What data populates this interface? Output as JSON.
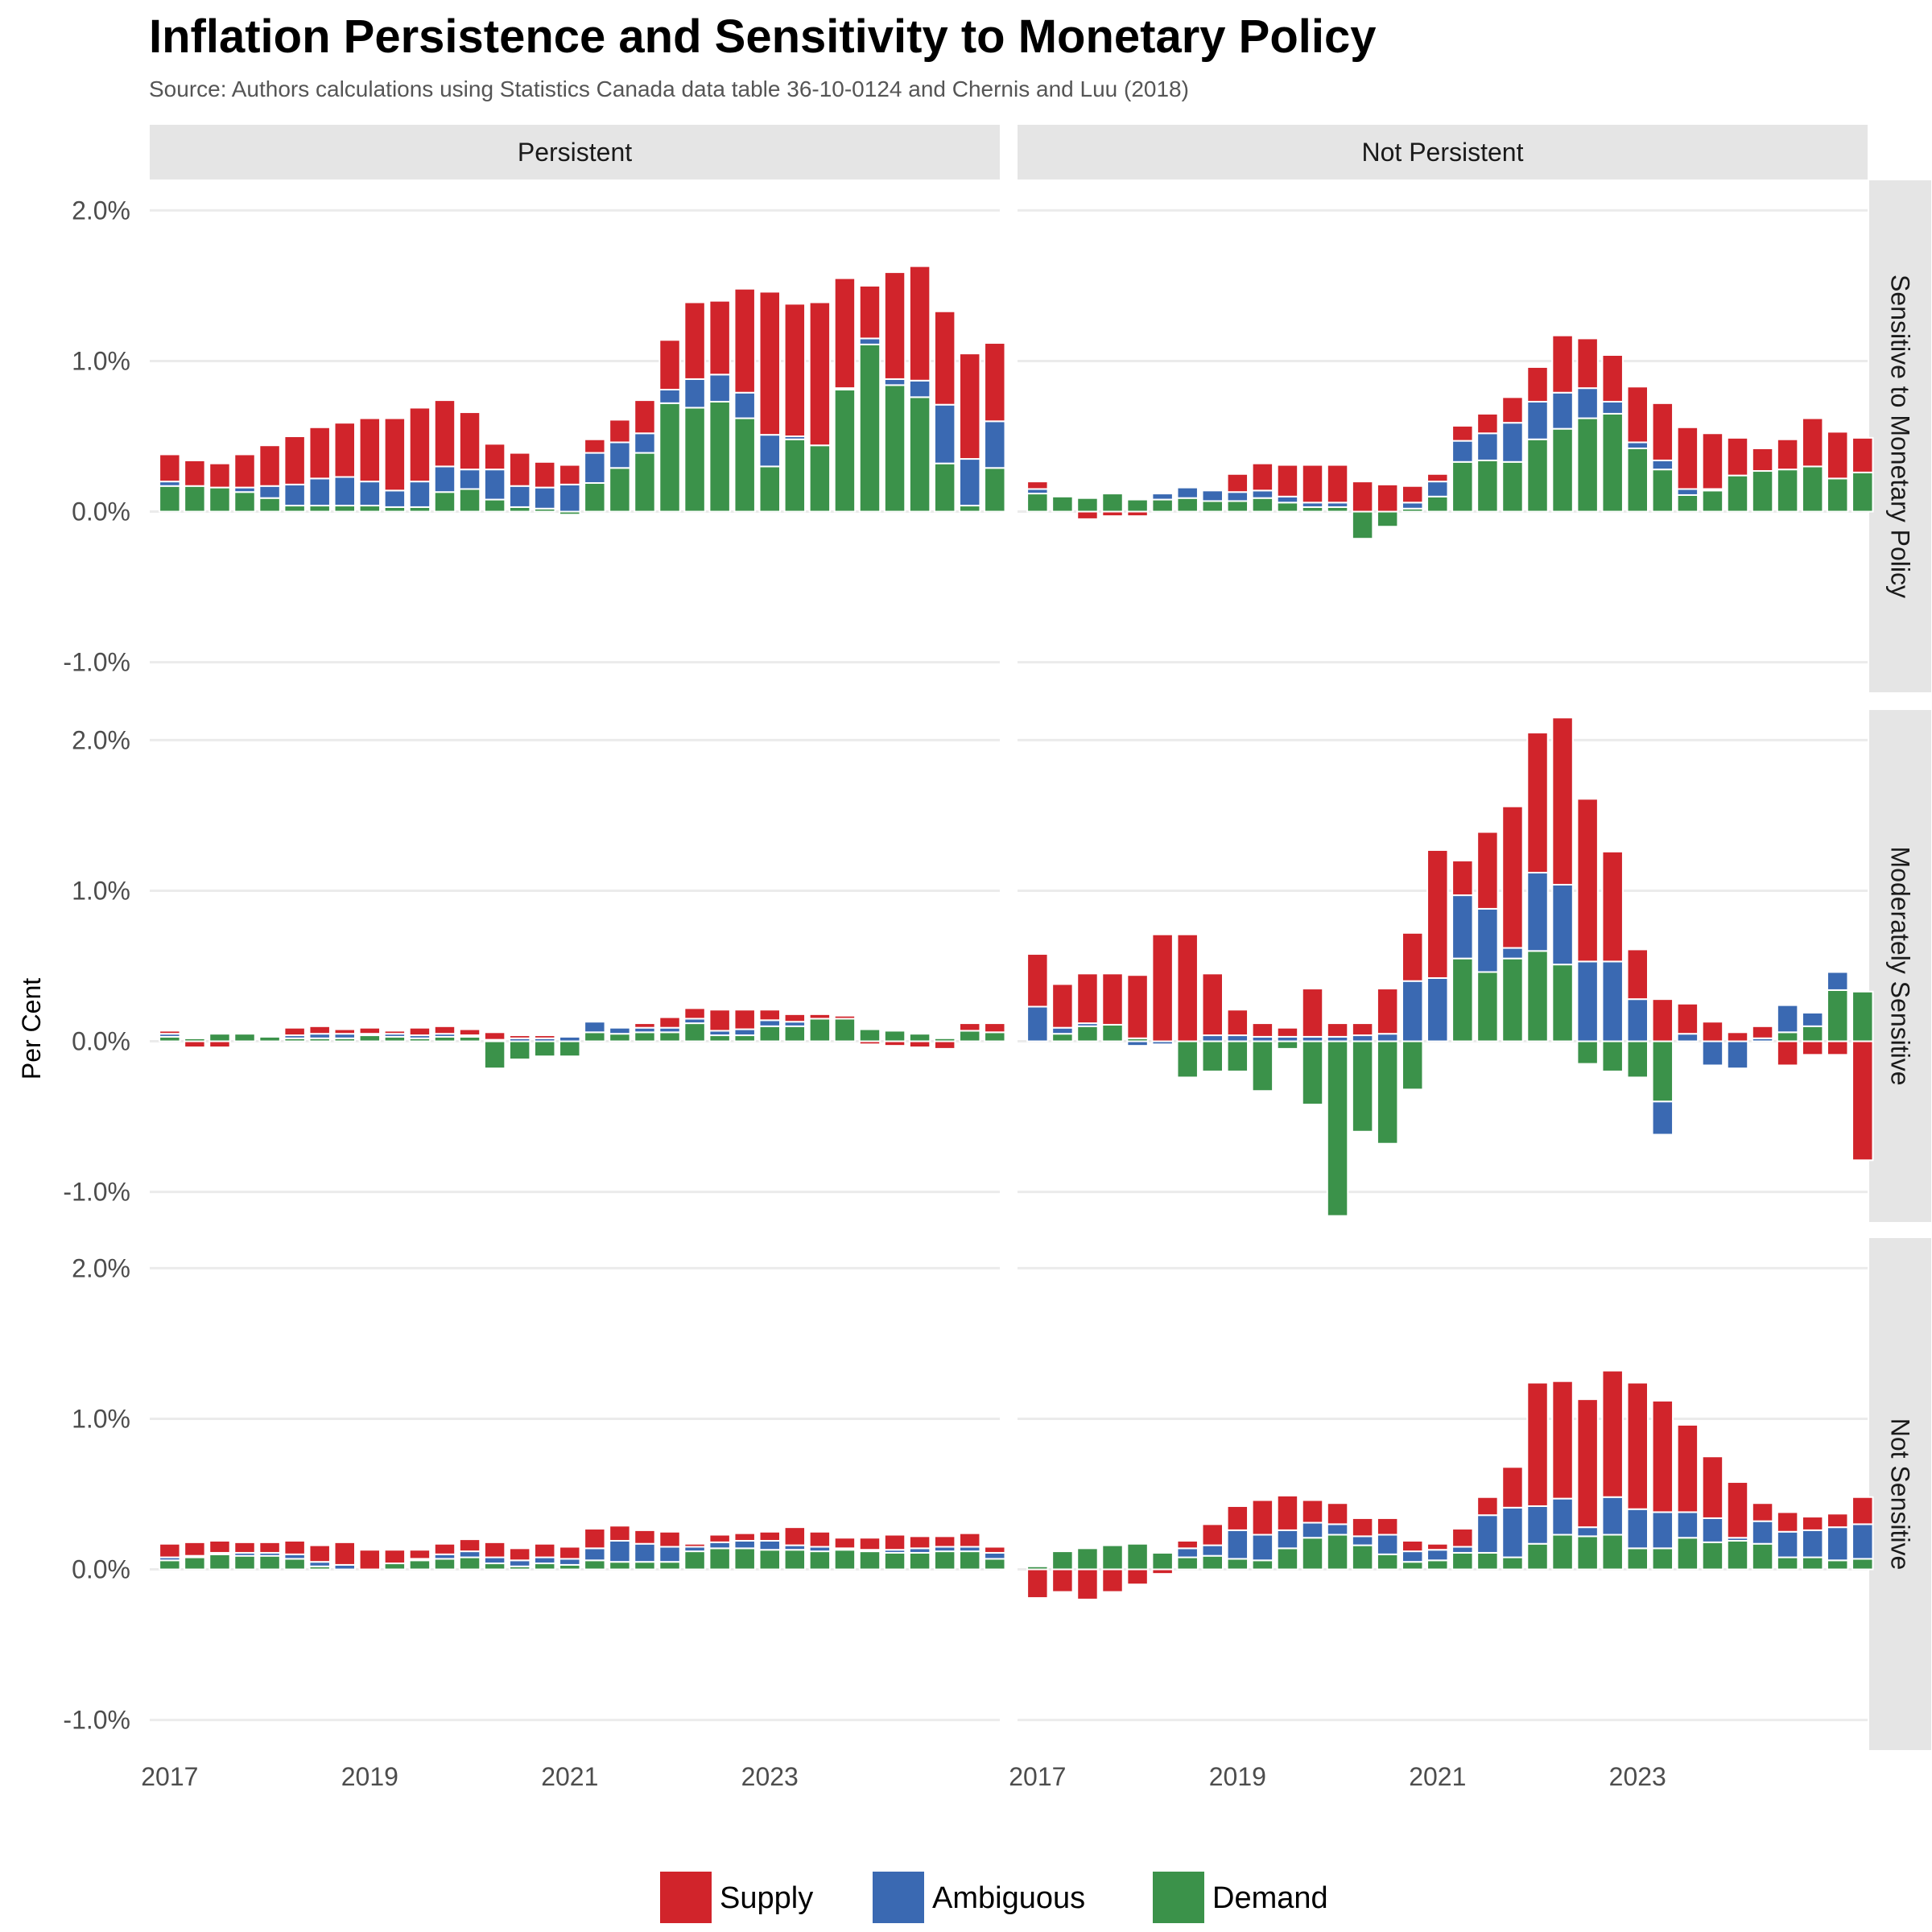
{
  "chart_data": {
    "type": "bar",
    "stacked": true,
    "title": "Inflation Persistence and Sensitivity to Monetary Policy",
    "subtitle": "Source: Authors calculations using Statistics Canada data table 36-10-0124 and Chernis and Luu (2018)",
    "ylabel": "Per Cent",
    "xlabel": "",
    "ylim": [
      -1.2,
      2.2
    ],
    "y_ticks": [
      2.0,
      1.0,
      0.0,
      -1.0
    ],
    "y_tick_labels": [
      "2.0%",
      "1.0%",
      "0.0%",
      "-1.0%"
    ],
    "x_ticks": [
      2017,
      2019,
      2021,
      2023
    ],
    "x_tick_labels": [
      "2017",
      "2019",
      "2021",
      "2023"
    ],
    "x_start": 2017.0,
    "x_step": 0.25,
    "grid": true,
    "legend_position": "bottom",
    "colors": {
      "Supply": "#d1242b",
      "Ambiguous": "#3a69b2",
      "Demand": "#3b924a"
    },
    "series_names": [
      "Supply",
      "Ambiguous",
      "Demand"
    ],
    "columns": [
      "Persistent",
      "Not Persistent"
    ],
    "rows": [
      "Sensitive to Monetary Policy",
      "Moderately Sensitive",
      "Not Sensitive"
    ],
    "panels": [
      {
        "column": "Persistent",
        "row": "Sensitive to Monetary Policy",
        "Demand": [
          0.17,
          0.17,
          0.16,
          0.13,
          0.09,
          0.04,
          0.04,
          0.04,
          0.04,
          0.03,
          0.03,
          0.13,
          0.15,
          0.08,
          0.03,
          0.02,
          -0.02,
          0.19,
          0.29,
          0.39,
          0.72,
          0.69,
          0.73,
          0.62,
          0.3,
          0.48,
          0.44,
          0.81,
          1.11,
          0.84,
          0.76,
          0.32,
          0.04,
          0.29
        ],
        "Ambiguous": [
          0.03,
          0.0,
          0.0,
          0.03,
          0.08,
          0.14,
          0.18,
          0.19,
          0.16,
          0.11,
          0.17,
          0.17,
          0.13,
          0.2,
          0.14,
          0.14,
          0.18,
          0.2,
          0.17,
          0.13,
          0.09,
          0.19,
          0.18,
          0.17,
          0.21,
          0.02,
          0.0,
          0.01,
          0.04,
          0.04,
          0.11,
          0.39,
          0.31,
          0.31
        ],
        "Supply": [
          0.18,
          0.17,
          0.16,
          0.22,
          0.27,
          0.32,
          0.34,
          0.36,
          0.42,
          0.48,
          0.49,
          0.44,
          0.38,
          0.17,
          0.22,
          0.17,
          0.13,
          0.09,
          0.15,
          0.22,
          0.33,
          0.51,
          0.49,
          0.69,
          0.95,
          0.88,
          0.95,
          0.73,
          0.35,
          0.71,
          0.76,
          0.62,
          0.7,
          0.52
        ]
      },
      {
        "column": "Not Persistent",
        "row": "Sensitive to Monetary Policy",
        "Demand": [
          0.12,
          0.1,
          0.09,
          0.12,
          0.08,
          0.08,
          0.09,
          0.07,
          0.07,
          0.09,
          0.06,
          0.03,
          0.03,
          -0.18,
          -0.1,
          0.02,
          0.1,
          0.33,
          0.34,
          0.33,
          0.48,
          0.55,
          0.62,
          0.65,
          0.42,
          0.28,
          0.11,
          0.14,
          0.24,
          0.27,
          0.28,
          0.3,
          0.22,
          0.26
        ],
        "Ambiguous": [
          0.03,
          0.0,
          0.0,
          0.0,
          0.0,
          0.04,
          0.07,
          0.07,
          0.06,
          0.05,
          0.04,
          0.03,
          0.03,
          0.0,
          0.0,
          0.04,
          0.1,
          0.14,
          0.18,
          0.26,
          0.25,
          0.24,
          0.2,
          0.08,
          0.04,
          0.06,
          0.04,
          0.01,
          0.0,
          0.0,
          0.0,
          0.0,
          0.0,
          0.0
        ],
        "Supply": [
          0.05,
          0.0,
          -0.05,
          -0.03,
          -0.03,
          0.0,
          0.0,
          0.0,
          0.12,
          0.18,
          0.21,
          0.25,
          0.25,
          0.2,
          0.18,
          0.11,
          0.05,
          0.1,
          0.13,
          0.17,
          0.23,
          0.38,
          0.33,
          0.31,
          0.37,
          0.38,
          0.41,
          0.37,
          0.25,
          0.15,
          0.2,
          0.32,
          0.31,
          0.23
        ]
      },
      {
        "column": "Persistent",
        "row": "Moderately Sensitive",
        "Demand": [
          0.03,
          0.02,
          0.05,
          0.05,
          0.03,
          0.02,
          0.02,
          0.02,
          0.04,
          0.03,
          0.02,
          0.03,
          0.03,
          -0.18,
          -0.12,
          -0.1,
          -0.1,
          0.06,
          0.05,
          0.06,
          0.06,
          0.12,
          0.04,
          0.04,
          0.1,
          0.1,
          0.15,
          0.15,
          0.08,
          0.07,
          0.05,
          0.02,
          0.07,
          0.06
        ],
        "Ambiguous": [
          0.02,
          0.01,
          0.0,
          0.0,
          0.0,
          0.02,
          0.03,
          0.03,
          0.01,
          0.02,
          0.02,
          0.02,
          0.01,
          0.01,
          0.02,
          0.02,
          0.03,
          0.07,
          0.04,
          0.03,
          0.03,
          0.03,
          0.03,
          0.04,
          0.04,
          0.03,
          0.0,
          0.0,
          0.0,
          0.0,
          0.0,
          0.0,
          0.0,
          0.0
        ],
        "Supply": [
          0.02,
          -0.04,
          -0.04,
          0.0,
          0.0,
          0.05,
          0.05,
          0.03,
          0.04,
          0.02,
          0.05,
          0.05,
          0.04,
          0.05,
          0.02,
          0.02,
          0.0,
          0.0,
          0.0,
          0.03,
          0.07,
          0.07,
          0.14,
          0.13,
          0.07,
          0.05,
          0.03,
          0.02,
          -0.02,
          -0.03,
          -0.04,
          -0.05,
          0.05,
          0.06
        ]
      },
      {
        "column": "Not Persistent",
        "row": "Moderately Sensitive",
        "Demand": [
          0.0,
          0.05,
          0.1,
          0.11,
          0.02,
          0.0,
          -0.24,
          -0.2,
          -0.2,
          -0.33,
          -0.05,
          -0.42,
          -1.16,
          -0.6,
          -0.68,
          -0.32,
          0.0,
          0.55,
          0.46,
          0.55,
          0.6,
          0.51,
          -0.15,
          -0.2,
          -0.24,
          -0.4,
          0.0,
          0.0,
          0.0,
          0.0,
          0.06,
          0.1,
          0.34,
          0.33
        ],
        "Ambiguous": [
          0.23,
          0.04,
          0.02,
          0.0,
          -0.03,
          -0.02,
          0.0,
          0.04,
          0.04,
          0.03,
          0.03,
          0.03,
          0.03,
          0.04,
          0.05,
          0.4,
          0.42,
          0.42,
          0.42,
          0.07,
          0.52,
          0.53,
          0.53,
          0.53,
          0.28,
          -0.22,
          0.05,
          -0.16,
          -0.18,
          0.02,
          0.18,
          0.09,
          0.12,
          0.0
        ],
        "Supply": [
          0.35,
          0.29,
          0.33,
          0.34,
          0.42,
          0.71,
          0.71,
          0.41,
          0.17,
          0.09,
          0.06,
          0.32,
          0.09,
          0.08,
          0.3,
          0.32,
          0.85,
          0.23,
          0.51,
          0.94,
          0.93,
          1.11,
          1.08,
          0.73,
          0.33,
          0.28,
          0.2,
          0.13,
          0.06,
          0.08,
          -0.16,
          -0.09,
          -0.09,
          -0.79
        ]
      },
      {
        "column": "Persistent",
        "row": "Not Sensitive",
        "Demand": [
          0.06,
          0.08,
          0.1,
          0.09,
          0.09,
          0.07,
          0.02,
          0.0,
          0.0,
          0.04,
          0.06,
          0.07,
          0.08,
          0.04,
          0.02,
          0.04,
          0.03,
          0.06,
          0.05,
          0.05,
          0.05,
          0.12,
          0.14,
          0.14,
          0.13,
          0.13,
          0.12,
          0.13,
          0.12,
          0.11,
          0.11,
          0.12,
          0.12,
          0.07
        ],
        "Ambiguous": [
          0.02,
          0.01,
          0.01,
          0.02,
          0.02,
          0.03,
          0.03,
          0.03,
          0.0,
          0.0,
          0.01,
          0.03,
          0.04,
          0.04,
          0.04,
          0.04,
          0.04,
          0.08,
          0.14,
          0.12,
          0.1,
          0.03,
          0.04,
          0.05,
          0.06,
          0.03,
          0.03,
          0.01,
          0.01,
          0.02,
          0.03,
          0.03,
          0.03,
          0.04
        ],
        "Supply": [
          0.09,
          0.09,
          0.08,
          0.07,
          0.07,
          0.09,
          0.11,
          0.15,
          0.13,
          0.09,
          0.06,
          0.07,
          0.08,
          0.1,
          0.08,
          0.09,
          0.08,
          0.13,
          0.1,
          0.09,
          0.1,
          0.02,
          0.05,
          0.05,
          0.06,
          0.12,
          0.1,
          0.07,
          0.08,
          0.1,
          0.08,
          0.07,
          0.09,
          0.04
        ]
      },
      {
        "column": "Not Persistent",
        "row": "Not Sensitive",
        "Demand": [
          0.02,
          0.12,
          0.14,
          0.16,
          0.17,
          0.11,
          0.08,
          0.09,
          0.07,
          0.06,
          0.14,
          0.21,
          0.23,
          0.16,
          0.1,
          0.05,
          0.06,
          0.11,
          0.11,
          0.08,
          0.17,
          0.23,
          0.22,
          0.23,
          0.14,
          0.14,
          0.21,
          0.18,
          0.19,
          0.17,
          0.08,
          0.08,
          0.06,
          0.07
        ],
        "Ambiguous": [
          0.0,
          0.0,
          0.0,
          0.0,
          0.0,
          0.0,
          0.06,
          0.07,
          0.19,
          0.17,
          0.12,
          0.1,
          0.07,
          0.06,
          0.13,
          0.07,
          0.07,
          0.04,
          0.25,
          0.33,
          0.25,
          0.24,
          0.06,
          0.25,
          0.26,
          0.24,
          0.17,
          0.16,
          0.02,
          0.15,
          0.17,
          0.18,
          0.22,
          0.23
        ],
        "Supply": [
          -0.19,
          -0.15,
          -0.2,
          -0.15,
          -0.1,
          -0.03,
          0.05,
          0.14,
          0.16,
          0.23,
          0.23,
          0.15,
          0.14,
          0.12,
          0.11,
          0.07,
          0.04,
          0.12,
          0.12,
          0.27,
          0.82,
          0.78,
          0.85,
          0.84,
          0.84,
          0.74,
          0.58,
          0.41,
          0.37,
          0.12,
          0.13,
          0.09,
          0.09,
          0.18
        ]
      }
    ],
    "legend": [
      "Supply",
      "Ambiguous",
      "Demand"
    ]
  }
}
